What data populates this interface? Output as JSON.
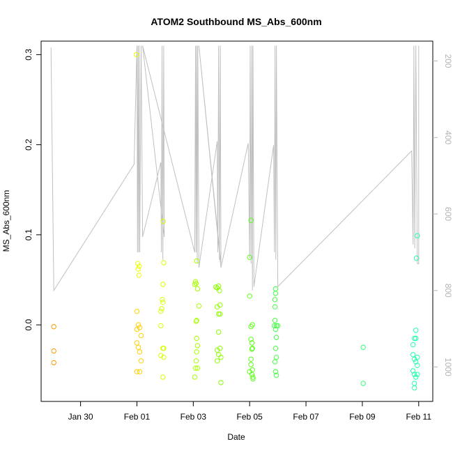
{
  "chart_data": {
    "type": "scatter",
    "title": "ATOM2 Southbound MS_Abs_600nm",
    "xlabel": "Date",
    "ylabel": "MS_Abs_600nm",
    "x_ticks": [
      {
        "label": "Jan 30",
        "value": 30.0
      },
      {
        "label": "Feb 01",
        "value": 32.0
      },
      {
        "label": "Feb 03",
        "value": 34.0
      },
      {
        "label": "Feb 05",
        "value": 36.0
      },
      {
        "label": "Feb 07",
        "value": 38.0
      },
      {
        "label": "Feb 09",
        "value": 40.0
      },
      {
        "label": "Feb 11",
        "value": 42.0
      }
    ],
    "xlim": [
      28.6,
      42.5
    ],
    "ylim": [
      -0.085,
      0.315
    ],
    "y_ticks": [
      {
        "label": "0.0",
        "value": 0.0
      },
      {
        "label": "0.1",
        "value": 0.1
      },
      {
        "label": "0.2",
        "value": 0.2
      },
      {
        "label": "0.3",
        "value": 0.3
      }
    ],
    "right_axis": {
      "color": "#b3b3b3",
      "reversed": true,
      "ylim": [
        1090,
        148
      ],
      "ticks": [
        {
          "label": "200",
          "value": 200
        },
        {
          "label": "400",
          "value": 400
        },
        {
          "label": "600",
          "value": 600
        },
        {
          "label": "800",
          "value": 800
        },
        {
          "label": "1000",
          "value": 1000
        }
      ]
    },
    "grid": false,
    "legend": "none",
    "series": [
      {
        "color": "#ff9900",
        "points": [
          [
            29.05,
            -0.002
          ],
          [
            29.05,
            -0.029
          ],
          [
            29.05,
            -0.042
          ]
        ]
      },
      {
        "color": "#ffd000",
        "points": [
          [
            32.0,
            0.015
          ],
          [
            32.0,
            -0.005
          ],
          [
            32.0,
            -0.02
          ],
          [
            32.0,
            -0.052
          ],
          [
            32.05,
            0.0
          ],
          [
            32.05,
            -0.025
          ],
          [
            32.1,
            -0.003
          ],
          [
            32.1,
            -0.03
          ],
          [
            32.1,
            -0.052
          ],
          [
            32.15,
            -0.012
          ],
          [
            32.15,
            -0.04
          ]
        ]
      },
      {
        "color": "#eaff00",
        "points": [
          [
            31.98,
            0.3
          ],
          [
            32.03,
            0.068
          ],
          [
            32.05,
            0.062
          ],
          [
            32.07,
            0.055
          ],
          [
            32.08,
            0.065
          ]
        ]
      },
      {
        "color": "#d4ff00",
        "points": [
          [
            32.85,
            0.015
          ],
          [
            32.85,
            -0.001
          ],
          [
            32.85,
            -0.034
          ],
          [
            32.88,
            0.018
          ],
          [
            32.9,
            0.028
          ],
          [
            32.92,
            0.045
          ],
          [
            32.92,
            0.025
          ],
          [
            32.92,
            -0.026
          ],
          [
            32.92,
            -0.058
          ],
          [
            32.95,
            -0.026
          ],
          [
            32.95,
            -0.036
          ],
          [
            32.95,
            0.069
          ],
          [
            32.93,
            0.115
          ]
        ]
      },
      {
        "color": "#a8ff00",
        "points": [
          [
            34.05,
            0.045
          ],
          [
            34.08,
            0.048
          ],
          [
            34.1,
            0.046
          ],
          [
            34.1,
            0.004
          ],
          [
            34.12,
            0.005
          ],
          [
            34.12,
            -0.03
          ],
          [
            34.1,
            -0.04
          ],
          [
            34.08,
            -0.048
          ],
          [
            34.05,
            -0.058
          ],
          [
            34.15,
            -0.023
          ],
          [
            34.15,
            -0.048
          ],
          [
            34.2,
            0.021
          ],
          [
            34.12,
            -0.015
          ],
          [
            34.15,
            0.04
          ],
          [
            34.12,
            0.071
          ]
        ]
      },
      {
        "color": "#8cff00",
        "points": [
          [
            34.8,
            0.042
          ],
          [
            34.85,
            0.041
          ],
          [
            34.9,
            0.043
          ],
          [
            34.93,
            0.038
          ],
          [
            34.85,
            0.02
          ],
          [
            34.9,
            0.012
          ],
          [
            34.95,
            0.012
          ],
          [
            34.95,
            0.022
          ],
          [
            34.85,
            -0.028
          ],
          [
            34.9,
            -0.008
          ],
          [
            34.95,
            -0.026
          ],
          [
            34.85,
            -0.04
          ],
          [
            34.9,
            -0.033
          ],
          [
            34.98,
            -0.036
          ],
          [
            34.98,
            -0.064
          ]
        ]
      },
      {
        "color": "#5cff1a",
        "points": [
          [
            36.0,
            0.075
          ],
          [
            36.05,
            0.116
          ],
          [
            36.0,
            0.032
          ],
          [
            36.05,
            -0.002
          ],
          [
            36.1,
            0.0
          ],
          [
            36.05,
            -0.016
          ],
          [
            36.08,
            -0.02
          ],
          [
            36.08,
            -0.027
          ],
          [
            36.1,
            -0.026
          ],
          [
            36.05,
            -0.038
          ],
          [
            36.05,
            -0.044
          ],
          [
            36.0,
            -0.052
          ],
          [
            36.08,
            -0.055
          ],
          [
            36.1,
            -0.05
          ],
          [
            36.12,
            -0.058
          ],
          [
            36.12,
            -0.06
          ]
        ]
      },
      {
        "color": "#44ff44",
        "points": [
          [
            36.92,
            0.04
          ],
          [
            36.92,
            0.035
          ],
          [
            36.9,
            0.028
          ],
          [
            36.9,
            0.02
          ],
          [
            36.9,
            0.005
          ],
          [
            36.88,
            -0.001
          ],
          [
            36.95,
            -0.001
          ],
          [
            37.0,
            -0.001
          ],
          [
            36.92,
            -0.005
          ],
          [
            36.95,
            -0.014
          ],
          [
            36.92,
            -0.026
          ],
          [
            36.95,
            -0.036
          ],
          [
            36.9,
            -0.041
          ],
          [
            36.92,
            -0.052
          ],
          [
            36.95,
            -0.056
          ]
        ]
      },
      {
        "color": "#33ff77",
        "points": [
          [
            40.03,
            -0.025
          ],
          [
            40.03,
            -0.065
          ]
        ]
      },
      {
        "color": "#22ffaa",
        "points": [
          [
            41.95,
            0.099
          ],
          [
            41.92,
            0.074
          ],
          [
            41.9,
            -0.006
          ],
          [
            41.9,
            -0.015
          ],
          [
            41.85,
            -0.015
          ],
          [
            41.8,
            -0.022
          ],
          [
            41.8,
            -0.033
          ],
          [
            41.85,
            -0.038
          ],
          [
            41.95,
            -0.036
          ],
          [
            41.9,
            -0.041
          ],
          [
            41.95,
            -0.045
          ],
          [
            41.8,
            -0.051
          ],
          [
            41.85,
            -0.055
          ],
          [
            41.95,
            -0.055
          ],
          [
            41.9,
            -0.058
          ],
          [
            41.85,
            -0.065
          ],
          [
            41.85,
            -0.07
          ]
        ]
      }
    ],
    "depth_line": {
      "color": "#c0c0c0",
      "points": [
        [
          28.95,
          165
        ],
        [
          29.05,
          800
        ],
        [
          31.9,
          470
        ],
        [
          32.0,
          160
        ],
        [
          32.02,
          700
        ],
        [
          32.04,
          160
        ],
        [
          32.06,
          700
        ],
        [
          32.08,
          160
        ],
        [
          32.1,
          700
        ],
        [
          32.15,
          160
        ],
        [
          32.2,
          660
        ],
        [
          32.85,
          465
        ],
        [
          32.87,
          700
        ],
        [
          32.89,
          160
        ],
        [
          32.92,
          720
        ],
        [
          32.95,
          160
        ],
        [
          32.97,
          660
        ],
        [
          32.2,
          160
        ],
        [
          34.05,
          700
        ],
        [
          34.08,
          160
        ],
        [
          34.1,
          700
        ],
        [
          34.12,
          160
        ],
        [
          34.14,
          730
        ],
        [
          34.16,
          160
        ],
        [
          34.2,
          740
        ],
        [
          34.85,
          410
        ],
        [
          34.87,
          700
        ],
        [
          34.9,
          160
        ],
        [
          34.93,
          720
        ],
        [
          34.96,
          160
        ],
        [
          34.98,
          730
        ],
        [
          34.2,
          160
        ],
        [
          34.98,
          740
        ],
        [
          35.95,
          415
        ],
        [
          36.0,
          715
        ],
        [
          36.02,
          160
        ],
        [
          36.05,
          730
        ],
        [
          36.08,
          160
        ],
        [
          36.1,
          800
        ],
        [
          36.12,
          160
        ],
        [
          36.15,
          790
        ],
        [
          36.85,
          420
        ],
        [
          36.88,
          700
        ],
        [
          36.9,
          160
        ],
        [
          36.93,
          720
        ],
        [
          36.95,
          160
        ],
        [
          37.0,
          790
        ],
        [
          41.75,
          435
        ],
        [
          41.8,
          680
        ],
        [
          41.83,
          160
        ],
        [
          41.86,
          690
        ],
        [
          41.9,
          160
        ],
        [
          41.95,
          730
        ],
        [
          42.0,
          730
        ],
        [
          42.0,
          160
        ]
      ]
    }
  }
}
